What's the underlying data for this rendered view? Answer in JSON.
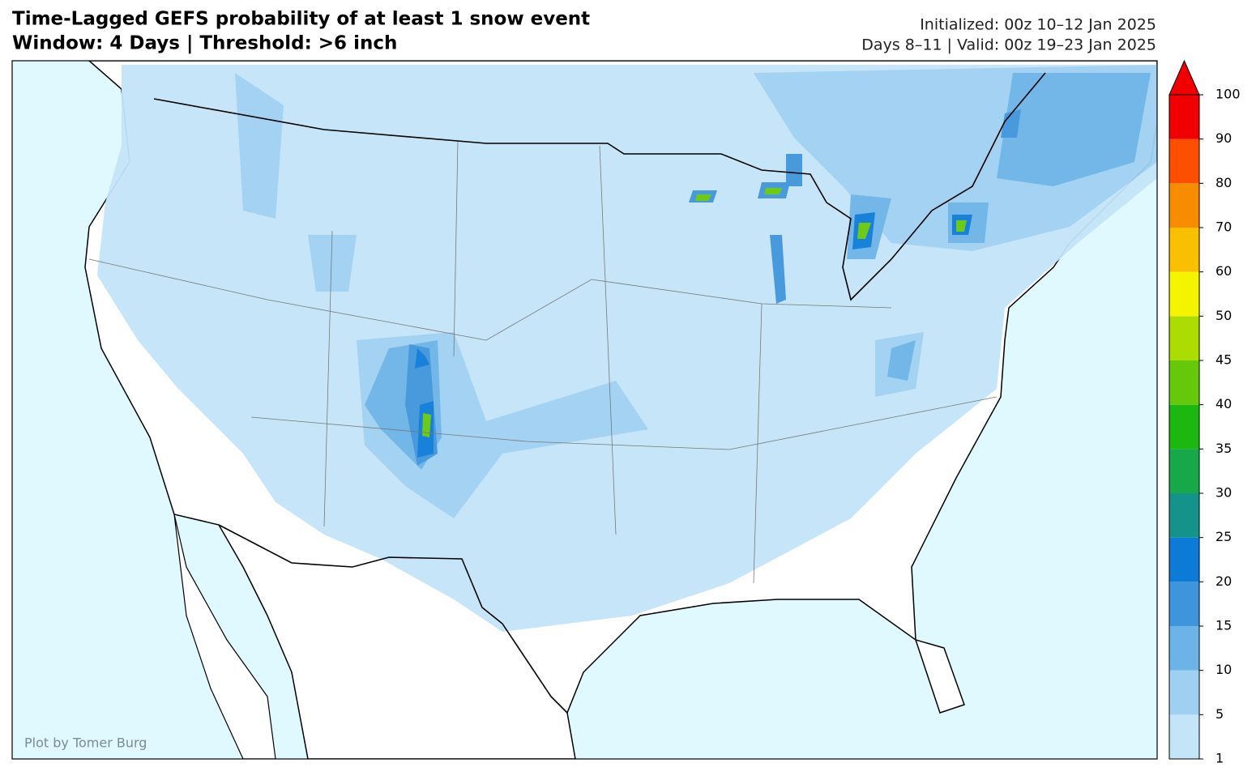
{
  "title": [
    "Time-Lagged GEFS probability of at least 1 snow event",
    "Window: 4 Days | Threshold: >6 inch"
  ],
  "info": [
    "Initialized: 00z 10–12 Jan 2025",
    "Days 8–11 | Valid: 00z 19–23 Jan 2025"
  ],
  "credit": "Plot by Tomer Burg",
  "colorbar": {
    "levels": [
      1,
      5,
      10,
      15,
      20,
      25,
      30,
      35,
      40,
      45,
      50,
      60,
      70,
      80,
      90,
      100
    ],
    "colors": [
      "#c4e4f8",
      "#9fd0f2",
      "#6cb4e8",
      "#3f95dc",
      "#0c7bd8",
      "#13938a",
      "#17a84a",
      "#1cb80f",
      "#66c80a",
      "#acdc00",
      "#f4f400",
      "#f8c000",
      "#f88c00",
      "#fc5000",
      "#f00000"
    ],
    "extend_color": "#f00000"
  }
}
